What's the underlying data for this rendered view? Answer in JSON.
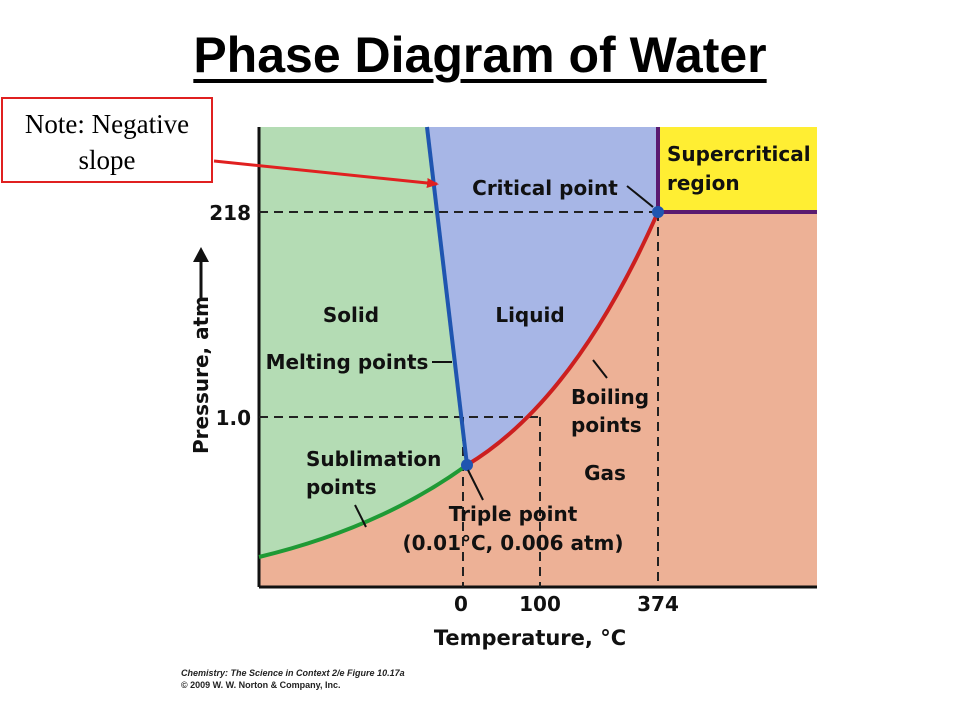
{
  "title": "Phase Diagram of Water",
  "note": {
    "line1": "Note: Negative",
    "line2": "slope"
  },
  "regions": {
    "solid": "Solid",
    "liquid": "Liquid",
    "gas": "Gas",
    "supercritical_line1": "Supercritical",
    "supercritical_line2": "region"
  },
  "labels": {
    "critical_point": "Critical point",
    "melting_points": "Melting points",
    "boiling_line1": "Boiling",
    "boiling_line2": "points",
    "sublimation_line1": "Sublimation",
    "sublimation_line2": "points",
    "triple_line1": "Triple point",
    "triple_line2": "(0.01°C, 0.006 atm)"
  },
  "axes": {
    "y_label": "Pressure, atm",
    "x_label": "Temperature, °C",
    "y_ticks": [
      "218",
      "1.0"
    ],
    "x_ticks": [
      "0",
      "100",
      "374"
    ]
  },
  "credit": {
    "book": "Chemistry: The Science in Context",
    "edition": " 2/e  Figure 10.17a",
    "copyright": "© 2009 W. W. Norton & Company, Inc."
  },
  "colors": {
    "solid": "#b4dcb4",
    "liquid": "#a7b6e6",
    "gas": "#edb196",
    "supercritical": "#ffee33",
    "melting_curve": "#1f55b0",
    "boiling_curve": "#cc1f1f",
    "sublimation_curve": "#1f9a35",
    "supercritical_border": "#5a1a70",
    "note_arrow": "#e02020"
  }
}
